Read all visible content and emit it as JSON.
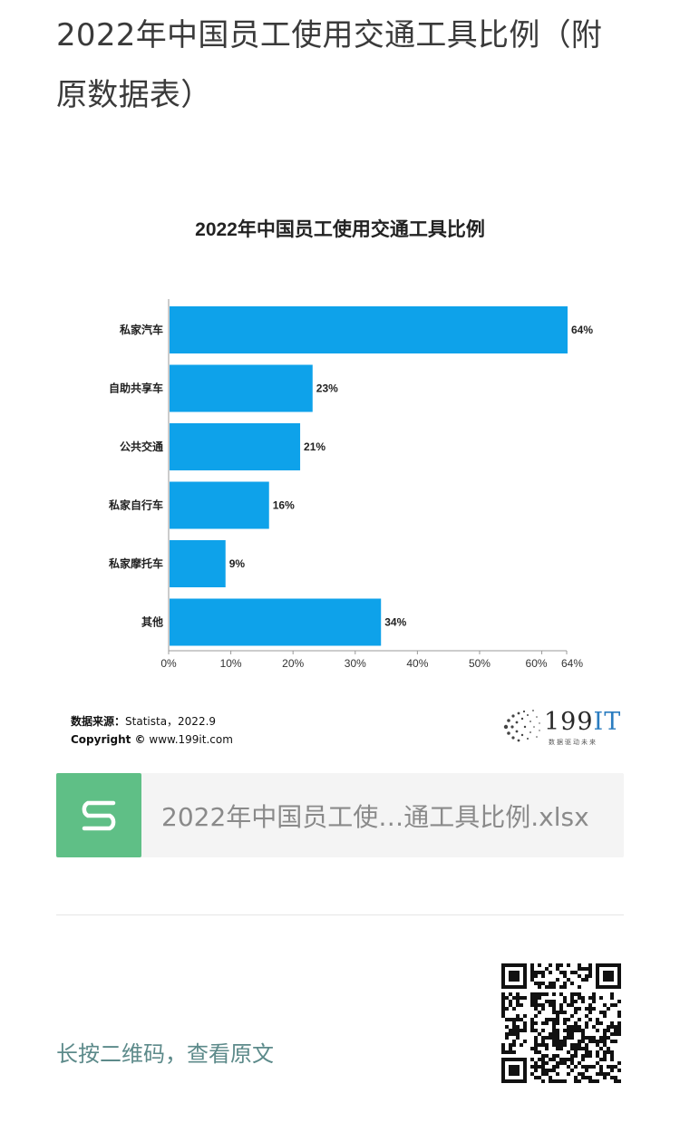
{
  "article": {
    "title": "2022年中国员工使用交通工具比例（附原数据表）"
  },
  "chart_data": {
    "type": "bar",
    "orientation": "horizontal",
    "title": "2022年中国员工使用交通工具比例",
    "categories": [
      "私家汽车",
      "自助共享车",
      "公共交通",
      "私家自行车",
      "私家摩托车",
      "其他"
    ],
    "values": [
      64,
      23,
      21,
      16,
      9,
      34
    ],
    "value_labels": [
      "64%",
      "23%",
      "21%",
      "16%",
      "9%",
      "34%"
    ],
    "x_ticks": [
      "0%",
      "10%",
      "20%",
      "30%",
      "40%",
      "50%",
      "60%",
      "64%"
    ],
    "x_tick_values": [
      0,
      10,
      20,
      30,
      40,
      50,
      60,
      64
    ],
    "xlim": [
      0,
      64
    ],
    "bar_color": "#0ea2ea",
    "grid": false
  },
  "source": {
    "source_label": "数据来源：",
    "source_value": "Statista，2022.9",
    "copyright_label": "Copyright ©",
    "copyright_value": "www.199it.com"
  },
  "brand": {
    "name_digits": "199",
    "name_letters": "IT",
    "slogan": "数据驱动未来"
  },
  "attachment": {
    "icon": "spreadsheet-s-icon",
    "file_name": "2022年中国员工使…通工具比例.xlsx",
    "icon_color": "#5fbf86"
  },
  "footer": {
    "qr_hint": "长按二维码，查看原文",
    "qr_icon": "qr-code-icon"
  }
}
